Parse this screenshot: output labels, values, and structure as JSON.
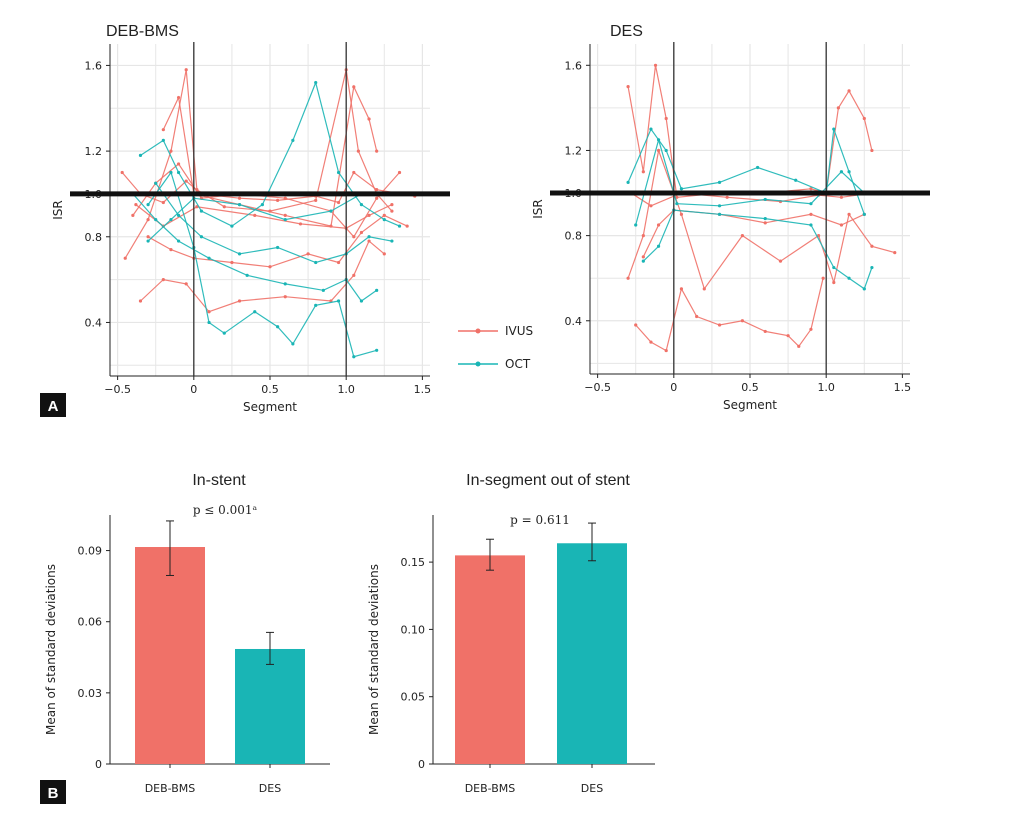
{
  "colors": {
    "ivus": "#f07168",
    "oct": "#19b5b5",
    "grid": "#e6e6e6",
    "axis": "#222222",
    "marker": "#333333"
  },
  "panel_labels": [
    "A",
    "B"
  ],
  "chart_data": [
    {
      "id": "deb-bms-isr",
      "type": "line",
      "title": "DEB-BMS",
      "xlabel": "Segment",
      "ylabel": "ISR",
      "xlim": [
        -0.55,
        1.55
      ],
      "ylim": [
        0.15,
        1.7
      ],
      "xticks": [
        -0.5,
        0,
        0.5,
        1.0,
        1.5
      ],
      "xtick_labels": [
        "−0.5",
        "0",
        "0.5",
        "1.0",
        "1.5"
      ],
      "yticks": [
        0.4,
        0.8,
        1.0,
        1.2,
        1.6
      ],
      "ytick_labels": [
        "0.4",
        "0.8",
        "1.0",
        "1.2",
        "1.6"
      ],
      "reference_line": 1.0,
      "vlines": [
        0,
        1
      ],
      "series": [
        {
          "name": "IVUS",
          "points": [
            [
              -0.47,
              1.1
            ],
            [
              -0.35,
              1.0
            ],
            [
              -0.2,
              0.96
            ],
            [
              -0.05,
              1.06
            ],
            [
              0.05,
              1.0
            ],
            [
              0.3,
              0.98
            ],
            [
              0.55,
              0.97
            ],
            [
              0.8,
              0.99
            ],
            [
              0.95,
              0.96
            ],
            [
              1.05,
              1.1
            ],
            [
              1.2,
              1.02
            ],
            [
              1.45,
              0.99
            ]
          ]
        },
        {
          "name": "IVUS",
          "points": [
            [
              -0.45,
              0.7
            ],
            [
              -0.3,
              0.88
            ],
            [
              -0.15,
              1.2
            ],
            [
              -0.05,
              1.58
            ],
            [
              0.02,
              1.02
            ],
            [
              0.2,
              0.94
            ],
            [
              0.5,
              0.92
            ],
            [
              0.8,
              0.97
            ],
            [
              1.0,
              1.58
            ],
            [
              1.08,
              1.2
            ],
            [
              1.2,
              1.0
            ],
            [
              1.3,
              0.92
            ]
          ]
        },
        {
          "name": "IVUS",
          "points": [
            [
              -0.4,
              0.9
            ],
            [
              -0.25,
              1.05
            ],
            [
              -0.1,
              1.14
            ],
            [
              0.05,
              0.98
            ],
            [
              0.3,
              1.0
            ],
            [
              0.6,
              0.98
            ],
            [
              0.9,
              0.92
            ],
            [
              1.05,
              0.8
            ],
            [
              1.2,
              0.98
            ],
            [
              1.35,
              1.1
            ]
          ]
        },
        {
          "name": "IVUS",
          "points": [
            [
              -0.35,
              0.5
            ],
            [
              -0.2,
              0.6
            ],
            [
              -0.05,
              0.58
            ],
            [
              0.1,
              0.45
            ],
            [
              0.3,
              0.5
            ],
            [
              0.6,
              0.52
            ],
            [
              0.9,
              0.5
            ],
            [
              1.05,
              0.62
            ],
            [
              1.15,
              0.78
            ],
            [
              1.25,
              0.72
            ]
          ]
        },
        {
          "name": "IVUS",
          "points": [
            [
              -0.3,
              0.8
            ],
            [
              -0.15,
              0.74
            ],
            [
              0.0,
              0.7
            ],
            [
              0.25,
              0.68
            ],
            [
              0.5,
              0.66
            ],
            [
              0.75,
              0.72
            ],
            [
              0.95,
              0.68
            ],
            [
              1.1,
              0.82
            ],
            [
              1.25,
              0.9
            ],
            [
              1.4,
              0.85
            ]
          ]
        },
        {
          "name": "IVUS",
          "points": [
            [
              -0.2,
              1.3
            ],
            [
              -0.1,
              1.45
            ],
            [
              0.0,
              1.0
            ],
            [
              0.3,
              0.95
            ],
            [
              0.6,
              0.9
            ],
            [
              0.9,
              0.85
            ],
            [
              1.05,
              1.5
            ],
            [
              1.15,
              1.35
            ],
            [
              1.2,
              1.2
            ]
          ]
        },
        {
          "name": "IVUS",
          "points": [
            [
              -0.38,
              0.95
            ],
            [
              -0.2,
              0.85
            ],
            [
              0.02,
              0.94
            ],
            [
              0.4,
              0.9
            ],
            [
              0.7,
              0.86
            ],
            [
              1.0,
              0.84
            ],
            [
              1.15,
              0.9
            ],
            [
              1.3,
              0.95
            ]
          ]
        },
        {
          "name": "OCT",
          "points": [
            [
              -0.35,
              1.18
            ],
            [
              -0.2,
              1.25
            ],
            [
              -0.1,
              1.1
            ],
            [
              0.05,
              0.92
            ],
            [
              0.25,
              0.85
            ],
            [
              0.45,
              0.95
            ],
            [
              0.65,
              1.25
            ],
            [
              0.8,
              1.52
            ],
            [
              0.95,
              1.1
            ],
            [
              1.1,
              0.95
            ],
            [
              1.25,
              0.88
            ],
            [
              1.35,
              0.85
            ]
          ]
        },
        {
          "name": "OCT",
          "points": [
            [
              -0.3,
              0.95
            ],
            [
              -0.15,
              1.1
            ],
            [
              0.0,
              0.75
            ],
            [
              0.1,
              0.4
            ],
            [
              0.2,
              0.35
            ],
            [
              0.4,
              0.45
            ],
            [
              0.55,
              0.38
            ],
            [
              0.65,
              0.3
            ],
            [
              0.8,
              0.48
            ],
            [
              0.95,
              0.5
            ],
            [
              1.05,
              0.24
            ],
            [
              1.2,
              0.27
            ]
          ]
        },
        {
          "name": "OCT",
          "points": [
            [
              -0.25,
              1.05
            ],
            [
              -0.1,
              0.9
            ],
            [
              0.05,
              0.8
            ],
            [
              0.3,
              0.72
            ],
            [
              0.55,
              0.75
            ],
            [
              0.8,
              0.68
            ],
            [
              1.0,
              0.72
            ],
            [
              1.15,
              0.8
            ],
            [
              1.3,
              0.78
            ]
          ]
        },
        {
          "name": "OCT",
          "points": [
            [
              -0.4,
              1.0
            ],
            [
              -0.25,
              0.88
            ],
            [
              -0.1,
              0.78
            ],
            [
              0.1,
              0.7
            ],
            [
              0.35,
              0.62
            ],
            [
              0.6,
              0.58
            ],
            [
              0.85,
              0.55
            ],
            [
              1.0,
              0.6
            ],
            [
              1.1,
              0.5
            ],
            [
              1.2,
              0.55
            ]
          ]
        },
        {
          "name": "OCT",
          "points": [
            [
              -0.3,
              0.78
            ],
            [
              -0.15,
              0.88
            ],
            [
              0.0,
              0.98
            ],
            [
              0.3,
              0.95
            ],
            [
              0.6,
              0.88
            ],
            [
              0.9,
              0.92
            ],
            [
              1.1,
              1.0
            ],
            [
              1.3,
              1.0
            ]
          ]
        }
      ]
    },
    {
      "id": "des-isr",
      "type": "line",
      "title": "DES",
      "xlabel": "Segment",
      "ylabel": "ISR",
      "xlim": [
        -0.55,
        1.55
      ],
      "ylim": [
        0.15,
        1.7
      ],
      "xticks": [
        -0.5,
        0,
        0.5,
        1.0,
        1.5
      ],
      "xtick_labels": [
        "−0.5",
        "0",
        "0.5",
        "1.0",
        "1.5"
      ],
      "yticks": [
        0.4,
        0.8,
        1.0,
        1.2,
        1.6
      ],
      "ytick_labels": [
        "0.4",
        "0.8",
        "1.0",
        "1.2",
        "1.6"
      ],
      "reference_line": 1.0,
      "vlines": [
        0,
        1
      ],
      "series": [
        {
          "name": "IVUS",
          "points": [
            [
              -0.3,
              1.5
            ],
            [
              -0.2,
              1.1
            ],
            [
              -0.12,
              1.6
            ],
            [
              -0.05,
              1.35
            ],
            [
              0.02,
              0.98
            ],
            [
              0.3,
              1.0
            ],
            [
              0.6,
              1.0
            ],
            [
              0.9,
              1.02
            ],
            [
              1.0,
              1.0
            ],
            [
              1.08,
              1.4
            ],
            [
              1.15,
              1.48
            ],
            [
              1.25,
              1.35
            ],
            [
              1.3,
              1.2
            ]
          ]
        },
        {
          "name": "IVUS",
          "points": [
            [
              -0.25,
              0.38
            ],
            [
              -0.15,
              0.3
            ],
            [
              -0.05,
              0.26
            ],
            [
              0.05,
              0.55
            ],
            [
              0.15,
              0.42
            ],
            [
              0.3,
              0.38
            ],
            [
              0.45,
              0.4
            ],
            [
              0.6,
              0.35
            ],
            [
              0.75,
              0.33
            ],
            [
              0.82,
              0.28
            ],
            [
              0.9,
              0.36
            ],
            [
              0.98,
              0.6
            ]
          ]
        },
        {
          "name": "IVUS",
          "points": [
            [
              -0.3,
              0.6
            ],
            [
              -0.2,
              0.8
            ],
            [
              -0.1,
              1.2
            ],
            [
              0.05,
              0.9
            ],
            [
              0.2,
              0.55
            ],
            [
              0.45,
              0.8
            ],
            [
              0.7,
              0.68
            ],
            [
              0.95,
              0.8
            ],
            [
              1.05,
              0.58
            ],
            [
              1.15,
              0.9
            ],
            [
              1.3,
              0.75
            ],
            [
              1.45,
              0.72
            ]
          ]
        },
        {
          "name": "IVUS",
          "points": [
            [
              -0.28,
              1.0
            ],
            [
              -0.15,
              0.94
            ],
            [
              0.05,
              1.0
            ],
            [
              0.35,
              0.98
            ],
            [
              0.7,
              0.96
            ],
            [
              0.95,
              0.99
            ],
            [
              1.1,
              0.98
            ],
            [
              1.3,
              1.0
            ]
          ]
        },
        {
          "name": "IVUS",
          "points": [
            [
              -0.2,
              0.7
            ],
            [
              -0.1,
              0.85
            ],
            [
              0.0,
              0.92
            ],
            [
              0.3,
              0.9
            ],
            [
              0.6,
              0.86
            ],
            [
              0.9,
              0.9
            ],
            [
              1.1,
              0.85
            ],
            [
              1.25,
              0.9
            ]
          ]
        },
        {
          "name": "OCT",
          "points": [
            [
              -0.3,
              1.05
            ],
            [
              -0.15,
              1.3
            ],
            [
              -0.05,
              1.2
            ],
            [
              0.05,
              1.02
            ],
            [
              0.3,
              1.05
            ],
            [
              0.55,
              1.12
            ],
            [
              0.8,
              1.06
            ],
            [
              1.0,
              1.0
            ],
            [
              1.05,
              1.3
            ],
            [
              1.15,
              1.1
            ],
            [
              1.25,
              0.9
            ]
          ]
        },
        {
          "name": "OCT",
          "points": [
            [
              -0.2,
              0.68
            ],
            [
              -0.1,
              0.75
            ],
            [
              0.0,
              0.92
            ],
            [
              0.3,
              0.9
            ],
            [
              0.6,
              0.88
            ],
            [
              0.9,
              0.85
            ],
            [
              1.05,
              0.65
            ],
            [
              1.15,
              0.6
            ],
            [
              1.25,
              0.55
            ],
            [
              1.3,
              0.65
            ]
          ]
        },
        {
          "name": "OCT",
          "points": [
            [
              -0.25,
              0.85
            ],
            [
              -0.1,
              1.25
            ],
            [
              0.02,
              0.95
            ],
            [
              0.3,
              0.94
            ],
            [
              0.6,
              0.97
            ],
            [
              0.9,
              0.95
            ],
            [
              1.1,
              1.1
            ],
            [
              1.25,
              1.0
            ]
          ]
        }
      ]
    },
    {
      "id": "in-stent-bar",
      "type": "bar",
      "title": "In-stent",
      "ylabel": "Mean of standard deviations",
      "categories": [
        "DEB-BMS",
        "DES"
      ],
      "values": [
        0.0915,
        0.0485
      ],
      "errors": [
        [
          0.0795,
          0.1025
        ],
        [
          0.042,
          0.0555
        ]
      ],
      "ylim": [
        0,
        0.105
      ],
      "yticks": [
        0,
        0.03,
        0.06,
        0.09
      ],
      "ytick_labels": [
        "0",
        "0.03",
        "0.06",
        "0.09"
      ],
      "annotation": "p ≤ 0.001ᵃ"
    },
    {
      "id": "in-segment-bar",
      "type": "bar",
      "title": "In-segment out of stent",
      "ylabel": "Mean of standard deviations",
      "categories": [
        "DEB-BMS",
        "DES"
      ],
      "values": [
        0.155,
        0.164
      ],
      "errors": [
        [
          0.144,
          0.167
        ],
        [
          0.151,
          0.179
        ]
      ],
      "ylim": [
        0,
        0.185
      ],
      "yticks": [
        0,
        0.05,
        0.1,
        0.15
      ],
      "ytick_labels": [
        "0",
        "0.05",
        "0.10",
        "0.15"
      ],
      "annotation": "p = 0.611"
    }
  ],
  "legend": {
    "items": [
      {
        "label": "IVUS",
        "key": "ivus"
      },
      {
        "label": "OCT",
        "key": "oct"
      }
    ]
  }
}
